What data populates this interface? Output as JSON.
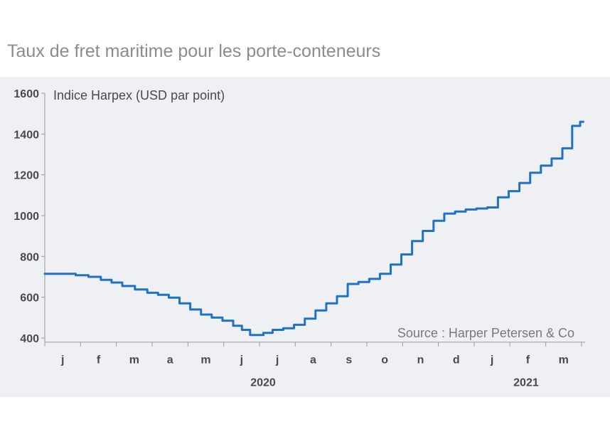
{
  "title": "Taux de fret maritime pour les porte-conteneurs",
  "chart_data": {
    "type": "line",
    "title": "Taux de fret maritime pour les porte-conteneurs",
    "ylabel": "Indice Harpex (USD par point)",
    "source": "Source : Harper Petersen & Co",
    "ylim": [
      380,
      1600
    ],
    "yticks": [
      400,
      600,
      800,
      1000,
      1200,
      1400,
      1600
    ],
    "xlim": [
      0,
      15.1
    ],
    "month_labels": [
      "j",
      "f",
      "m",
      "a",
      "m",
      "j",
      "j",
      "a",
      "s",
      "o",
      "n",
      "d",
      "j",
      "f",
      "m"
    ],
    "year_labels": [
      {
        "label": "2020",
        "x": 6.1
      },
      {
        "label": "2021",
        "x": 13.45
      }
    ],
    "grid": false,
    "colors": {
      "line": "#1f72c4",
      "background": "#eff0f4",
      "axis": "#9a9a9a"
    },
    "series": [
      {
        "x": [
          0,
          0.7,
          1.0,
          1.4,
          1.7,
          2.0,
          2.3,
          2.7,
          3.0,
          3.3,
          3.6,
          3.9,
          4.2,
          4.5,
          4.8,
          5.1,
          5.4,
          5.6,
          5.85,
          6.0,
          6.2,
          6.5,
          6.8,
          7.1,
          7.4,
          7.7,
          8.0,
          8.3,
          8.6,
          8.9,
          9.2,
          9.5,
          9.8,
          10.1,
          10.4,
          10.7,
          11.0,
          11.3,
          11.6,
          11.9,
          12.2,
          12.5,
          12.8,
          13.1,
          13.4,
          13.7,
          14.0,
          14.3,
          14.6,
          14.85,
          15.05
        ],
        "values": [
          715,
          715,
          708,
          700,
          685,
          672,
          655,
          638,
          622,
          612,
          598,
          570,
          540,
          515,
          500,
          485,
          460,
          440,
          415,
          415,
          425,
          440,
          448,
          465,
          495,
          535,
          570,
          605,
          665,
          675,
          690,
          715,
          760,
          810,
          875,
          925,
          975,
          1010,
          1020,
          1030,
          1035,
          1040,
          1090,
          1120,
          1160,
          1210,
          1245,
          1280,
          1330,
          1440,
          1460
        ]
      }
    ]
  }
}
